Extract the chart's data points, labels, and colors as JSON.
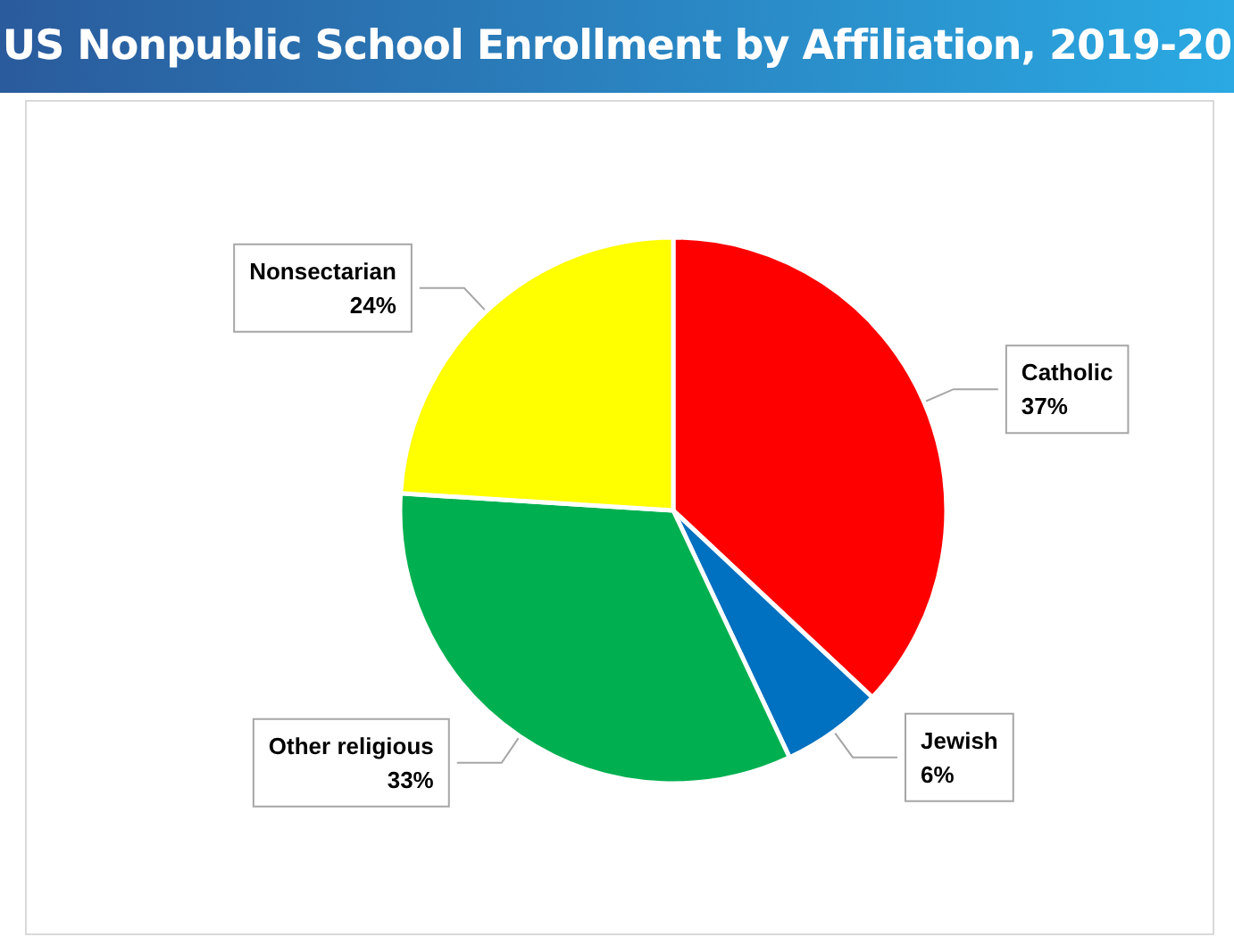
{
  "chart_data": {
    "type": "pie",
    "title": "US Nonpublic School Enrollment by Affiliation, 2019-20",
    "categories": [
      "Catholic",
      "Jewish",
      "Other religious",
      "Nonsectarian"
    ],
    "values": [
      37,
      6,
      33,
      24
    ],
    "value_labels": [
      "37%",
      "6%",
      "33%",
      "24%"
    ],
    "colors": [
      "#ff0000",
      "#0070c0",
      "#00b050",
      "#ffff00"
    ],
    "legend": false
  }
}
